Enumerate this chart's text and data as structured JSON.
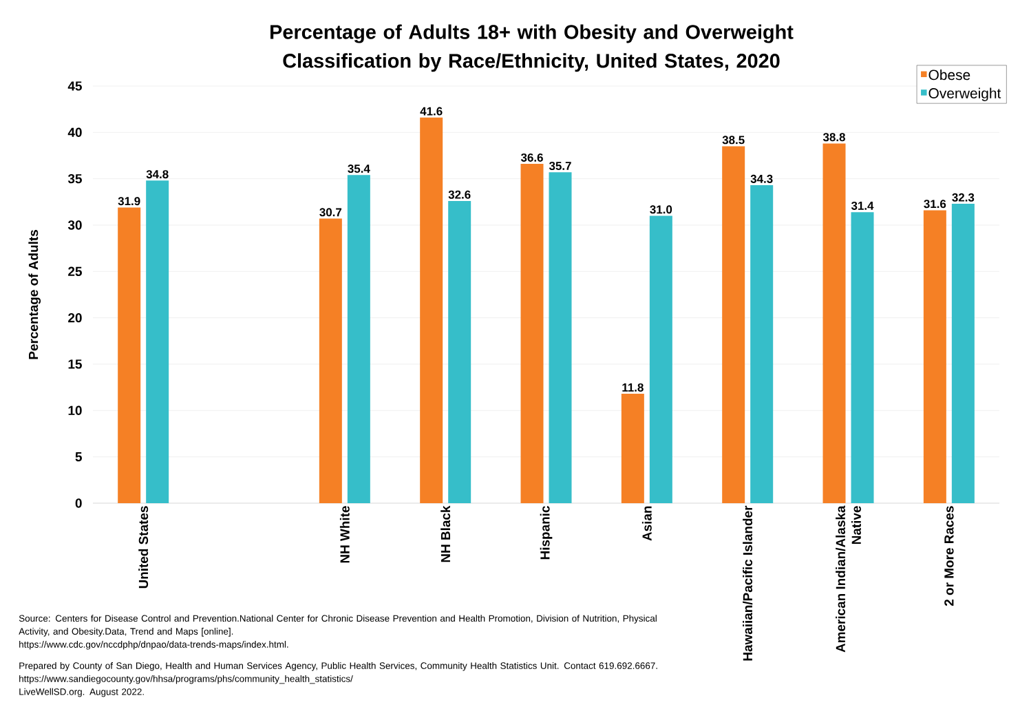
{
  "chart_data": {
    "type": "bar",
    "title": "Percentage of Adults 18+ with Obesity and Overweight Classification by Race/Ethnicity, United States, 2020",
    "ylabel": "Percentage of Adults",
    "categories": [
      "United States",
      null,
      "NH White",
      "NH Black",
      "Hispanic",
      "Asian",
      "Hawaiian/Pacific Islander",
      "American Indian/Alaska Native",
      "2 or More Races"
    ],
    "series": [
      {
        "name": "Obese",
        "color": "#f58025",
        "values": [
          31.9,
          null,
          30.7,
          41.6,
          36.6,
          11.8,
          38.5,
          38.8,
          31.6
        ],
        "value_labels": [
          "31.9",
          null,
          "30.7",
          "41.6",
          "36.6",
          "11.8",
          "38.5",
          "38.8",
          "31.6"
        ]
      },
      {
        "name": "Overweight",
        "color": "#36bec9",
        "values": [
          34.8,
          null,
          35.4,
          32.6,
          35.7,
          31.0,
          34.3,
          31.4,
          32.3
        ],
        "value_labels": [
          "34.8",
          null,
          "35.4",
          "32.6",
          "35.7",
          "31.0",
          "34.3",
          "31.4",
          "32.3"
        ]
      }
    ],
    "ylim": [
      0,
      45
    ],
    "yticks": [
      0,
      5,
      10,
      15,
      20,
      25,
      30,
      35,
      40,
      45
    ],
    "grid": "y",
    "legend": "top right",
    "annotations": [
      "Source: Centers for Disease Control and Prevention.National Center for Chronic Disease Prevention and Health Promotion, Division of Nutrition, Physical Activity, and Obesity.Data, Trend and Maps [online].",
      "https://www.cdc.gov/nccdphp/dnpao/data-trends-maps/index.html.",
      "Prepared by County of San Diego, Health and Human Services Agency, Public Health Services, Community Health Statistics Unit. Contact 619.692.6667.",
      "https://www.sandiegocounty.gov/hhsa/programs/phs/community_health_statistics/",
      "LiveWellSD.org. August 2022."
    ]
  }
}
